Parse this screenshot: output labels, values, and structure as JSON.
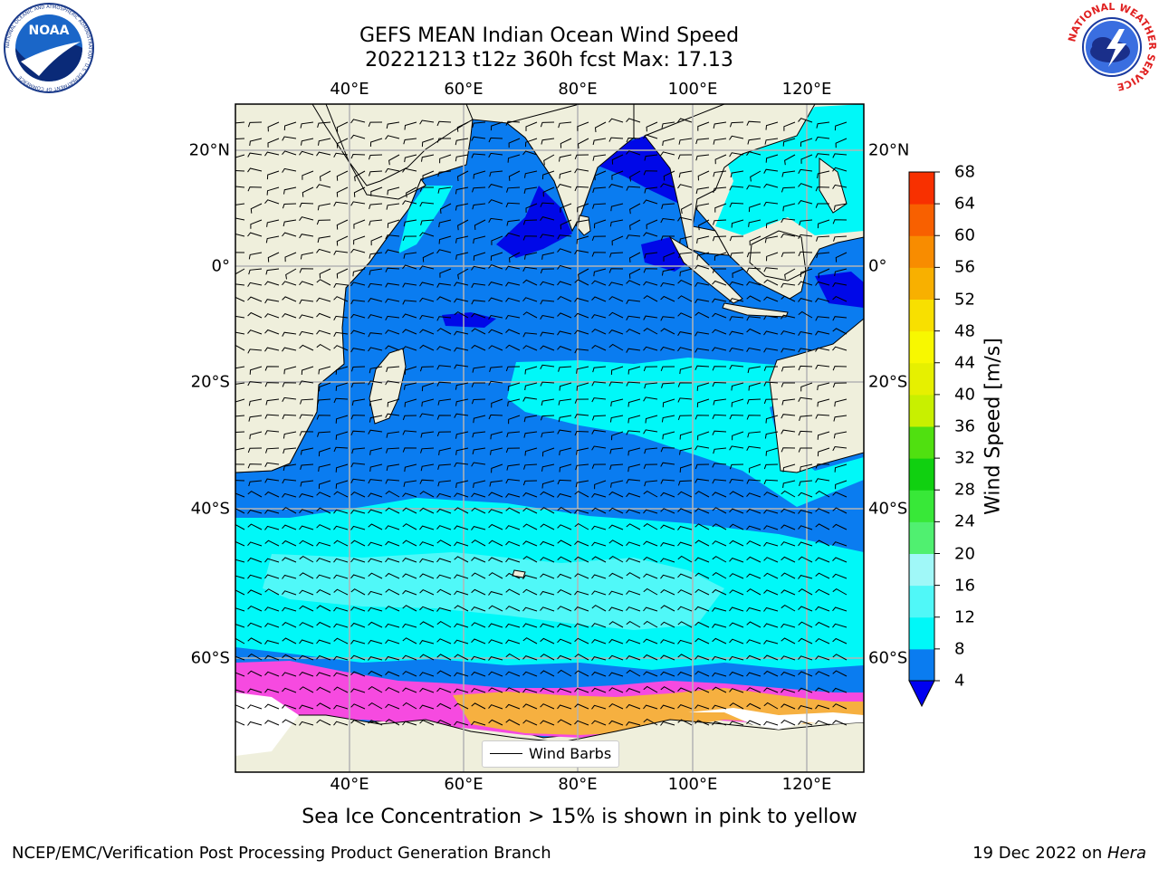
{
  "header": {
    "title_line1": "GEFS MEAN Indian Ocean Wind Speed",
    "title_line2": "20221213 t12z 360h fcst   Max: 17.13"
  },
  "logos": {
    "noaa": "NOAA",
    "noaa_ring_text": "NATIONAL OCEANIC AND ATMOSPHERIC ADMINISTRATION · U.S. DEPARTMENT OF COMMERCE",
    "nws_ring_text": "NATIONAL WEATHER SERVICE"
  },
  "map": {
    "lon_ticks": [
      "40°E",
      "60°E",
      "80°E",
      "100°E",
      "120°E"
    ],
    "lat_ticks": [
      "20°N",
      "0°",
      "20°S",
      "40°S",
      "60°S"
    ],
    "legend_label": "Wind Barbs",
    "colors": {
      "land": "#efefdc",
      "ocean_4_8": "#0a7cf0",
      "ocean_0_4": "#0008e8",
      "ocean_8_12": "#00f8f8",
      "ocean_12_16": "#50f8f8",
      "ice_pink": "#f64ae0",
      "ice_orange": "#f6b040",
      "antarctic_ice": "#ffffff"
    }
  },
  "colorbar": {
    "label": "Wind Speed [m/s]",
    "ticks": [
      "4",
      "8",
      "12",
      "16",
      "20",
      "24",
      "28",
      "32",
      "36",
      "40",
      "44",
      "48",
      "52",
      "56",
      "60",
      "64",
      "68"
    ],
    "bin_colors": [
      "#0a7cf0",
      "#00f8f8",
      "#50f8f8",
      "#a0f8f8",
      "#50f070",
      "#38e838",
      "#10d010",
      "#50e010",
      "#c8f000",
      "#e6f000",
      "#f8f800",
      "#f8e000",
      "#f8b000",
      "#f88c00",
      "#f86000",
      "#f83000"
    ],
    "extend_color": "#0000f0"
  },
  "footer": {
    "note": "Sea Ice Concentration > 15% is shown in pink to yellow",
    "credit_left": "NCEP/EMC/Verification Post Processing Product Generation Branch",
    "credit_right_date": "19 Dec 2022 on ",
    "credit_right_host": "Hera"
  }
}
